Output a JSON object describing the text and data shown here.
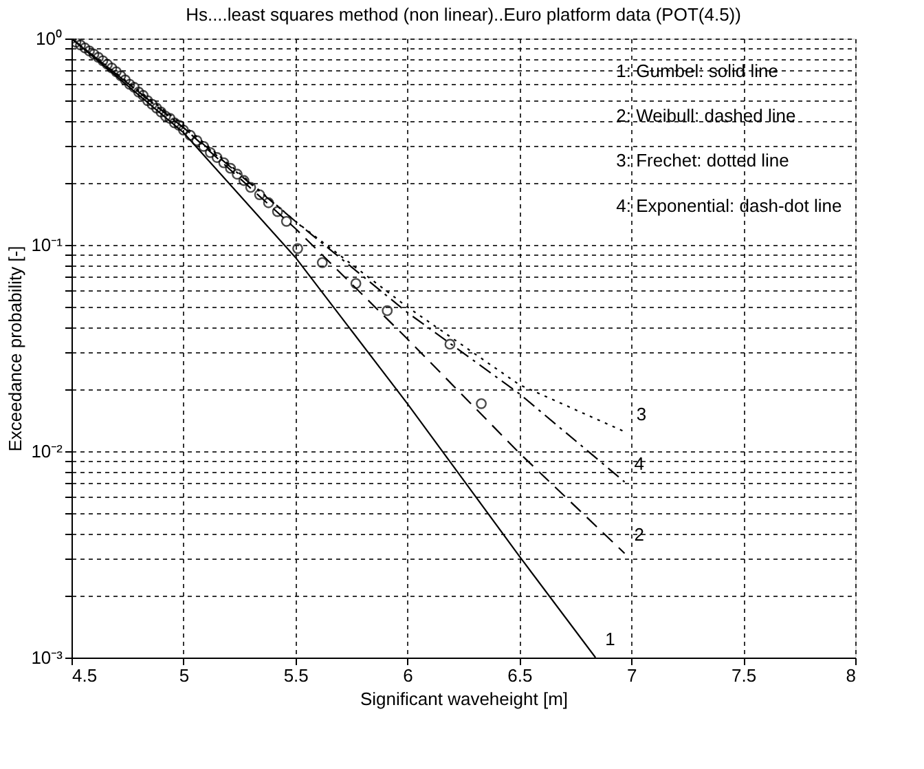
{
  "chart_data": {
    "type": "line",
    "title": "Hs....least squares method (non linear)..Euro platform data (POT(4.5))",
    "xlabel": "Significant waveheight [m]",
    "ylabel": "Exceedance probability [-]",
    "log": "y",
    "grid": true,
    "xlim": [
      4.5,
      8
    ],
    "xticks": [
      4.5,
      5,
      5.5,
      6,
      6.5,
      7,
      7.5,
      8
    ],
    "ylim": [
      0.001,
      1
    ],
    "yticks": [
      {
        "value": 0.001,
        "label": "10⁻³"
      },
      {
        "value": 0.002,
        "label": null
      },
      {
        "value": 0.003,
        "label": null
      },
      {
        "value": 0.004,
        "label": null
      },
      {
        "value": 0.005,
        "label": null
      },
      {
        "value": 0.006,
        "label": null
      },
      {
        "value": 0.007,
        "label": null
      },
      {
        "value": 0.008,
        "label": null
      },
      {
        "value": 0.009,
        "label": null
      },
      {
        "value": 0.01,
        "label": "10⁻²"
      },
      {
        "value": 0.02,
        "label": null
      },
      {
        "value": 0.03,
        "label": null
      },
      {
        "value": 0.04,
        "label": null
      },
      {
        "value": 0.05,
        "label": null
      },
      {
        "value": 0.06,
        "label": null
      },
      {
        "value": 0.07,
        "label": null
      },
      {
        "value": 0.08,
        "label": null
      },
      {
        "value": 0.09,
        "label": null
      },
      {
        "value": 0.1,
        "label": "10⁻¹"
      },
      {
        "value": 0.2,
        "label": null
      },
      {
        "value": 0.3,
        "label": null
      },
      {
        "value": 0.4,
        "label": null
      },
      {
        "value": 0.5,
        "label": null
      },
      {
        "value": 0.6,
        "label": null
      },
      {
        "value": 0.7,
        "label": null
      },
      {
        "value": 0.8,
        "label": null
      },
      {
        "value": 0.9,
        "label": null
      },
      {
        "value": 1,
        "label": "10⁰"
      }
    ],
    "series": [
      {
        "type": "scatter",
        "marker": "circle",
        "color": "#000000",
        "x": [
          4.5,
          4.52,
          4.54,
          4.56,
          4.58,
          4.6,
          4.62,
          4.64,
          4.66,
          4.68,
          4.7,
          4.72,
          4.74,
          4.76,
          4.78,
          4.8,
          4.82,
          4.84,
          4.86,
          4.88,
          4.9,
          4.92,
          4.94,
          4.96,
          4.98,
          5.0,
          5.03,
          5.06,
          5.09,
          5.12,
          5.15,
          5.18,
          5.21,
          5.24,
          5.27,
          5.3,
          5.34,
          5.38,
          5.42,
          5.46,
          5.51,
          5.62,
          5.77,
          5.91,
          6.19,
          6.33
        ],
        "values": [
          1.0,
          0.96,
          0.93,
          0.9,
          0.87,
          0.84,
          0.81,
          0.78,
          0.75,
          0.72,
          0.69,
          0.66,
          0.63,
          0.6,
          0.58,
          0.55,
          0.53,
          0.5,
          0.48,
          0.46,
          0.44,
          0.42,
          0.41,
          0.39,
          0.38,
          0.36,
          0.34,
          0.32,
          0.3,
          0.28,
          0.265,
          0.25,
          0.235,
          0.22,
          0.205,
          0.19,
          0.175,
          0.16,
          0.145,
          0.13,
          0.096,
          0.082,
          0.065,
          0.048,
          0.033,
          0.017
        ]
      },
      {
        "name": "1",
        "line_style": "solid",
        "color": "#000000",
        "x": [
          4.5,
          5,
          5.5,
          6,
          6.5,
          6.84
        ],
        "values": [
          1.0,
          0.35,
          0.087,
          0.017,
          0.0031,
          0.001
        ]
      },
      {
        "name": "2",
        "line_style": "dashed",
        "color": "#000000",
        "x": [
          4.5,
          5,
          5.5,
          6,
          6.5,
          6.97
        ],
        "values": [
          1.0,
          0.37,
          0.12,
          0.035,
          0.0098,
          0.0032
        ]
      },
      {
        "name": "3",
        "line_style": "dotted",
        "color": "#000000",
        "x": [
          4.5,
          5,
          5.5,
          6,
          6.5,
          6.98
        ],
        "values": [
          1.0,
          0.38,
          0.13,
          0.05,
          0.021,
          0.0123
        ]
      },
      {
        "name": "4",
        "line_style": "dashdot",
        "color": "#000000",
        "x": [
          4.5,
          5,
          5.5,
          6,
          6.5,
          6.97
        ],
        "values": [
          1.0,
          0.37,
          0.13,
          0.047,
          0.019,
          0.0071
        ]
      }
    ],
    "annotations": [
      "1: Gumbel: solid line",
      "2: Weibull: dashed line",
      "3: Frechet: dotted line",
      "4: Exponential: dash-dot line"
    ]
  }
}
